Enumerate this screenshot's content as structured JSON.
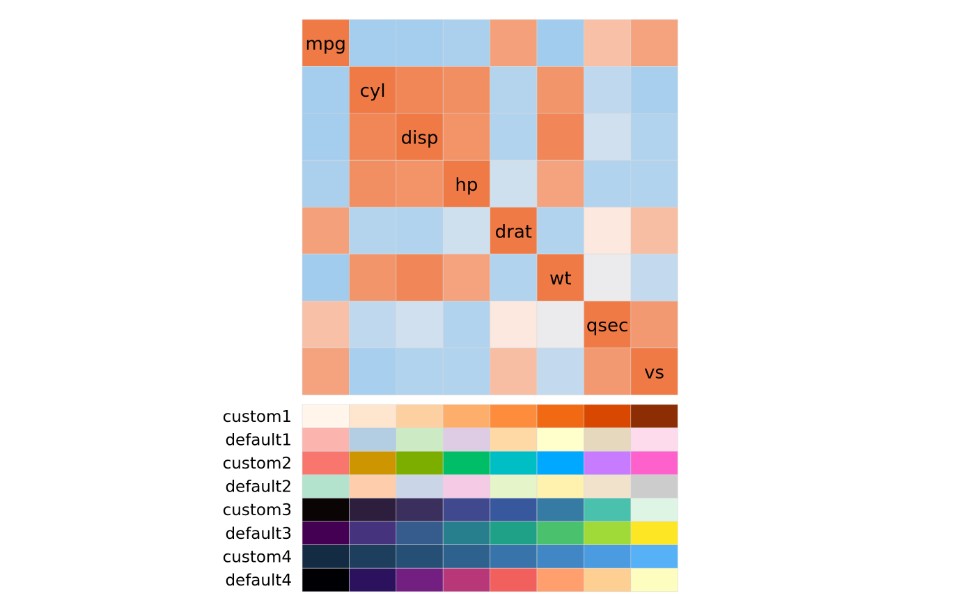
{
  "chart_data": [
    {
      "type": "heatmap",
      "variables": [
        "mpg",
        "cyl",
        "disp",
        "hp",
        "drat",
        "wt",
        "qsec",
        "vs"
      ],
      "values": [
        [
          1.0,
          -0.85,
          -0.85,
          -0.78,
          0.68,
          -0.87,
          0.42,
          0.66
        ],
        [
          -0.85,
          1.0,
          0.9,
          0.83,
          -0.7,
          0.78,
          -0.59,
          -0.81
        ],
        [
          -0.85,
          0.9,
          1.0,
          0.79,
          -0.71,
          0.89,
          -0.43,
          -0.71
        ],
        [
          -0.78,
          0.83,
          0.79,
          1.0,
          -0.45,
          0.66,
          -0.71,
          -0.72
        ],
        [
          0.68,
          -0.7,
          -0.71,
          -0.45,
          1.0,
          -0.71,
          0.09,
          0.44
        ],
        [
          -0.87,
          0.78,
          0.89,
          0.66,
          -0.71,
          1.0,
          -0.17,
          -0.55
        ],
        [
          0.42,
          -0.59,
          -0.43,
          -0.71,
          0.09,
          -0.17,
          1.0,
          0.74
        ],
        [
          0.66,
          -0.81,
          -0.71,
          -0.72,
          0.44,
          -0.55,
          0.74,
          1.0
        ]
      ],
      "colors": {
        "negative": "#94c6ee",
        "neutral": "#fdf3ee",
        "positive": "#f07a45"
      }
    },
    {
      "type": "table",
      "rows": [
        {
          "name": "custom1",
          "colors": [
            "#fff5eb",
            "#fee6ce",
            "#fdd0a2",
            "#fdae6b",
            "#fd8d3c",
            "#f16913",
            "#d94801",
            "#8c2d04"
          ]
        },
        {
          "name": "default1",
          "colors": [
            "#fbb4ae",
            "#b3cde3",
            "#ccebc5",
            "#decbe4",
            "#fed9a6",
            "#ffffcc",
            "#e5d8bd",
            "#fddaec"
          ]
        },
        {
          "name": "custom2",
          "colors": [
            "#f8766d",
            "#cd9600",
            "#7cae00",
            "#00be67",
            "#00bfc4",
            "#00a9ff",
            "#c77cff",
            "#ff61cc"
          ]
        },
        {
          "name": "default2",
          "colors": [
            "#b3e2cd",
            "#fdcdac",
            "#cbd5e8",
            "#f4cae4",
            "#e6f5c9",
            "#fff2ae",
            "#f1e2cc",
            "#cccccc"
          ]
        },
        {
          "name": "custom3",
          "colors": [
            "#0b0405",
            "#2d1e3e",
            "#3b2f5e",
            "#40498e",
            "#38589e",
            "#357ba3",
            "#49c1ad",
            "#def5e5"
          ]
        },
        {
          "name": "default3",
          "colors": [
            "#440154",
            "#46337e",
            "#365c8d",
            "#277f8e",
            "#1fa187",
            "#4ac16d",
            "#a0da39",
            "#fde725"
          ]
        },
        {
          "name": "custom4",
          "colors": [
            "#132b43",
            "#1d3e5c",
            "#264f75",
            "#2f618f",
            "#3874aa",
            "#4187c5",
            "#4b9be1",
            "#56b1f7"
          ]
        },
        {
          "name": "default4",
          "colors": [
            "#000004",
            "#2c115f",
            "#721f81",
            "#b73779",
            "#f1605d",
            "#fe9f6d",
            "#fecf92",
            "#fcfdbf"
          ]
        }
      ]
    }
  ]
}
